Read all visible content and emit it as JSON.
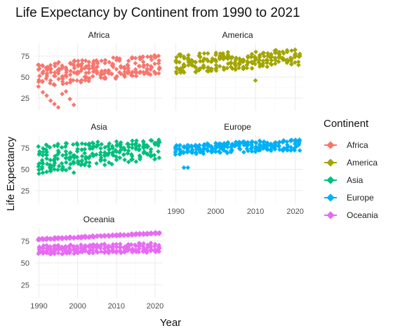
{
  "chart_data": {
    "type": "scatter",
    "title": "Life Expectancy by Continent from 1990 to 2021",
    "xlabel": "Year",
    "ylabel": "Life Expectancy",
    "xlim": [
      1989,
      2022
    ],
    "ylim": [
      10,
      90
    ],
    "x_ticks": [
      1990,
      2000,
      2010,
      2020
    ],
    "y_ticks": [
      25,
      50,
      75
    ],
    "legend_title": "Continent",
    "legend_position": "right",
    "grid": true,
    "panels": [
      {
        "name": "Africa",
        "color": "#F8766D",
        "bands": [
          {
            "x": [
              1990,
              2021
            ],
            "low": [
              38,
              54
            ],
            "high": [
              67,
              77
            ]
          }
        ],
        "outliers": [
          {
            "x": 1991,
            "y": 32
          },
          {
            "x": 1992,
            "y": 28
          },
          {
            "x": 1993,
            "y": 22
          },
          {
            "x": 1994,
            "y": 18
          },
          {
            "x": 1995,
            "y": 14
          },
          {
            "x": 1996,
            "y": 30
          },
          {
            "x": 1997,
            "y": 33
          },
          {
            "x": 1998,
            "y": 24
          },
          {
            "x": 1999,
            "y": 17
          }
        ]
      },
      {
        "name": "America",
        "color": "#A3A500",
        "bands": [
          {
            "x": [
              1990,
              2021
            ],
            "low": [
              54,
              64
            ],
            "high": [
              78,
              83
            ]
          }
        ],
        "outliers": [
          {
            "x": 2010,
            "y": 46
          }
        ]
      },
      {
        "name": "Asia",
        "color": "#00BF7D",
        "bands": [
          {
            "x": [
              1990,
              2021
            ],
            "low": [
              46,
              62
            ],
            "high": [
              80,
              85
            ]
          }
        ],
        "outliers": [
          {
            "x": 1990,
            "y": 45
          },
          {
            "x": 1991,
            "y": 46
          },
          {
            "x": 1992,
            "y": 47
          },
          {
            "x": 1993,
            "y": 49
          },
          {
            "x": 1997,
            "y": 49
          },
          {
            "x": 1999,
            "y": 46
          }
        ]
      },
      {
        "name": "Europe",
        "color": "#00B0F6",
        "bands": [
          {
            "x": [
              1990,
              2021
            ],
            "low": [
              67,
              72
            ],
            "high": [
              79,
              86
            ]
          }
        ],
        "outliers": [
          {
            "x": 1992,
            "y": 52
          },
          {
            "x": 1993,
            "y": 52
          }
        ]
      },
      {
        "name": "Oceania",
        "color": "#E76BF3",
        "bands": [
          {
            "x": [
              1990,
              2021
            ],
            "low": [
              59,
              62
            ],
            "high": [
              70,
              73
            ]
          },
          {
            "x": [
              1990,
              2021
            ],
            "low": [
              76,
              83
            ],
            "high": [
              78,
              85
            ]
          }
        ],
        "outliers": []
      }
    ]
  }
}
